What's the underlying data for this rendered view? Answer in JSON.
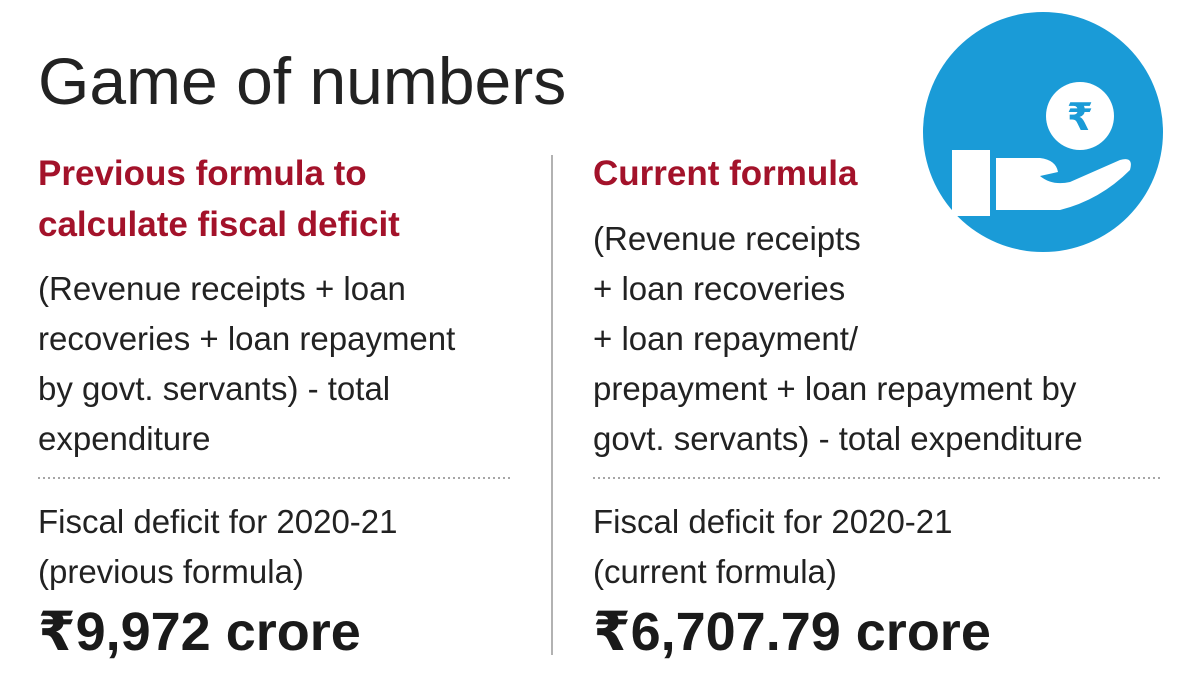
{
  "header": {
    "title": "Game of numbers"
  },
  "icon": {
    "symbol": "₹"
  },
  "columns": [
    {
      "heading": [
        "Previous formula to",
        "calculate fiscal deficit"
      ],
      "formula": [
        "(Revenue receipts + loan",
        "recoveries + loan repayment",
        "by govt. servants) - total",
        "expenditure"
      ],
      "result_label": [
        "Fiscal deficit for 2020-21",
        "(previous formula)"
      ],
      "amount": "₹9,972 crore"
    },
    {
      "heading": [
        "Current formula"
      ],
      "formula": [
        "(Revenue receipts",
        "+ loan recoveries",
        "+ loan repayment/",
        "prepayment + loan repayment by",
        "govt. servants) - total expenditure"
      ],
      "result_label": [
        "Fiscal deficit for 2020-21",
        "(current formula)"
      ],
      "amount": "₹6,707.79 crore"
    }
  ]
}
